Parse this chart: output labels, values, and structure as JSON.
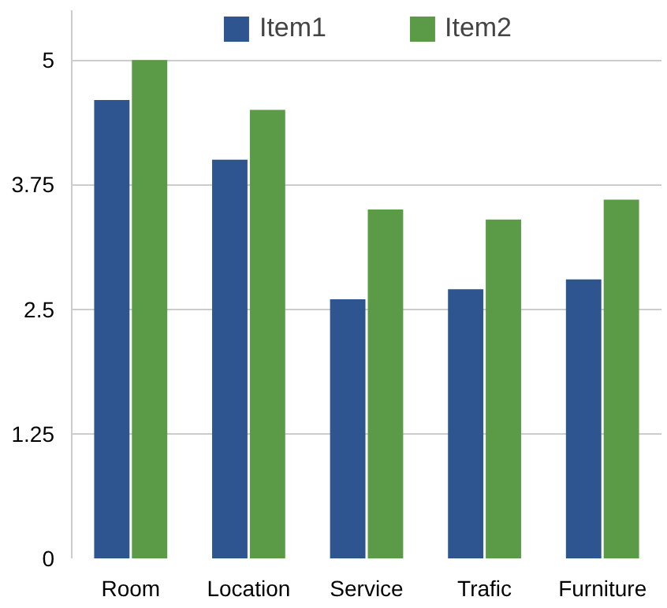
{
  "chart_data": {
    "type": "bar",
    "categories": [
      "Room",
      "Location",
      "Service",
      "Trafic",
      "Furniture"
    ],
    "series": [
      {
        "name": "Item1",
        "color": "#2e5590",
        "values": [
          4.6,
          4.0,
          2.6,
          2.7,
          2.8
        ]
      },
      {
        "name": "Item2",
        "color": "#5b9a46",
        "values": [
          5.0,
          4.5,
          3.5,
          3.4,
          3.6
        ]
      }
    ],
    "ylim": [
      0,
      5.5
    ],
    "yticks": [
      0,
      1.25,
      2.5,
      3.75,
      5
    ],
    "grid": "y",
    "legend": "top"
  }
}
